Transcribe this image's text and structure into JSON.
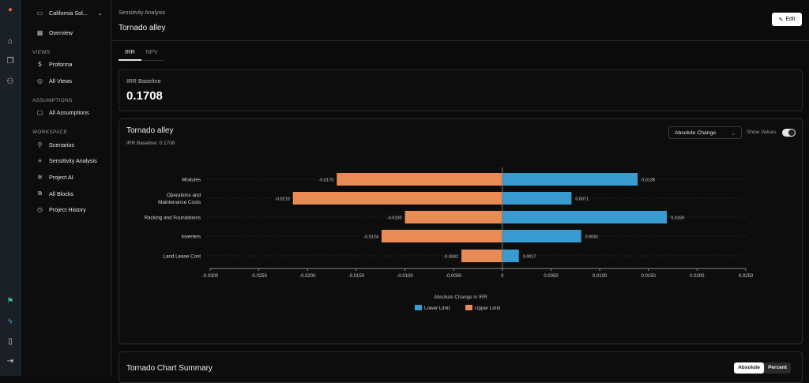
{
  "rail": {
    "icons": [
      "logo-icon",
      "home-icon",
      "projects-icon",
      "users-icon",
      "flag-icon",
      "lightning-icon",
      "book-icon",
      "logout-icon"
    ]
  },
  "sidebar": {
    "project": "California Sol...",
    "overview": "Overview",
    "sections": [
      {
        "title": "VIEWS",
        "items": [
          "Proforma",
          "All Views"
        ]
      },
      {
        "title": "ASSUMPTIONS",
        "items": [
          "All Assumptions"
        ]
      },
      {
        "title": "WORKSPACE",
        "items": [
          "Scenarios",
          "Sensitivity Analysis",
          "Project AI",
          "All Blocks",
          "Project History"
        ]
      }
    ]
  },
  "header": {
    "breadcrumb": "Sensitivity Analysis",
    "title": "Tornado alley",
    "edit": "Edit"
  },
  "tabs": [
    {
      "label": "IRR",
      "active": true
    },
    {
      "label": "NPV",
      "active": false
    }
  ],
  "baseline": {
    "label": "IRR Baseline",
    "value": "0.1708"
  },
  "chart_card": {
    "title": "Tornado alley",
    "subtitle": "IRR Baseline: 0.1708",
    "mode": "Absolute Change",
    "show_values_label": "Show Values",
    "show_values": true
  },
  "chart_data": {
    "type": "bar",
    "orientation": "horizontal-tornado",
    "categories": [
      "Modules",
      "Operations and Maintenance Costs",
      "Racking and Foundations",
      "Inverters",
      "Land Lease Cost"
    ],
    "category_lines": [
      [
        "Modules"
      ],
      [
        "Operations and",
        "Maintenance Costs"
      ],
      [
        "Racking and Foundations"
      ],
      [
        "Inverters"
      ],
      [
        "Land Lease Cost"
      ]
    ],
    "series": [
      {
        "name": "Lower Limit",
        "color": "#3a9bd1",
        "values": [
          0.0139,
          0.0071,
          0.0169,
          0.0081,
          0.0017
        ],
        "labels": [
          "0.0139",
          "0.0071",
          "0.0169",
          "0.0081",
          "0.0017"
        ]
      },
      {
        "name": "Upper Limit",
        "color": "#e88b55",
        "values": [
          -0.017,
          -0.0215,
          -0.01,
          -0.0124,
          -0.0042
        ],
        "labels": [
          "-0.0170",
          "-0.0215",
          "-0.0100",
          "-0.0124",
          "-0.0042"
        ]
      }
    ],
    "xlim": [
      -0.03,
      0.025
    ],
    "xticks": [
      "-0.0300",
      "-0.0250",
      "-0.0200",
      "-0.0150",
      "-0.0100",
      "-0.0050",
      "0",
      "0.0050",
      "0.0100",
      "0.0150",
      "0.0200",
      "0.0250"
    ],
    "xlabel": "Absolute Change in IRR",
    "legend": "bottom"
  },
  "summary": {
    "title": "Tornado Chart Summary",
    "toggle": [
      "Absolute",
      "Percent"
    ],
    "active": "Absolute"
  }
}
